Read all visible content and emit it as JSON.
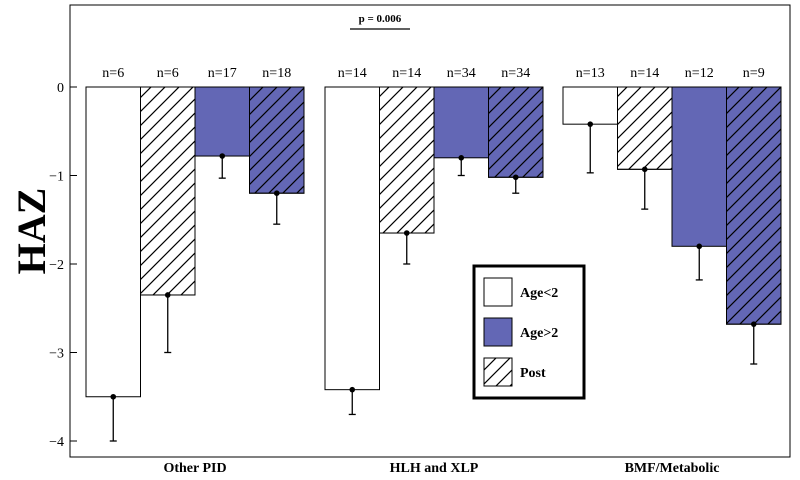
{
  "chart_data": {
    "type": "bar",
    "ylabel": "HAZ",
    "xlabel": "",
    "title": "",
    "ylim": [
      -4.15,
      0.8
    ],
    "yticks": [
      0,
      -1,
      -2,
      -3,
      -4
    ],
    "ytick_labels": [
      "0",
      "−1",
      "−2",
      "−3",
      "−4"
    ],
    "categories": [
      "Other PID",
      "HLH and XLP",
      "BMF/Metabolic"
    ],
    "bars_per_group": 4,
    "bars": [
      {
        "group": 0,
        "kind": "age_lt2",
        "value": -3.5,
        "err": 0.5,
        "n": "n=6"
      },
      {
        "group": 0,
        "kind": "age_lt2_post",
        "value": -2.35,
        "err": 0.65,
        "n": "n=6"
      },
      {
        "group": 0,
        "kind": "age_gt2",
        "value": -0.78,
        "err": 0.25,
        "n": "n=17"
      },
      {
        "group": 0,
        "kind": "age_gt2_post",
        "value": -1.2,
        "err": 0.35,
        "n": "n=18"
      },
      {
        "group": 1,
        "kind": "age_lt2",
        "value": -3.42,
        "err": 0.28,
        "n": "n=14"
      },
      {
        "group": 1,
        "kind": "age_lt2_post",
        "value": -1.65,
        "err": 0.35,
        "n": "n=14"
      },
      {
        "group": 1,
        "kind": "age_gt2",
        "value": -0.8,
        "err": 0.2,
        "n": "n=34"
      },
      {
        "group": 1,
        "kind": "age_gt2_post",
        "value": -1.02,
        "err": 0.18,
        "n": "n=34"
      },
      {
        "group": 2,
        "kind": "age_lt2",
        "value": -0.42,
        "err": 0.55,
        "n": "n=13"
      },
      {
        "group": 2,
        "kind": "age_lt2_post",
        "value": -0.93,
        "err": 0.45,
        "n": "n=14"
      },
      {
        "group": 2,
        "kind": "age_gt2",
        "value": -1.8,
        "err": 0.38,
        "n": "n=12"
      },
      {
        "group": 2,
        "kind": "age_gt2_post",
        "value": -2.68,
        "err": 0.45,
        "n": "n=9"
      }
    ],
    "legend": {
      "placement": "lower-right",
      "entries": [
        {
          "label": "Age<2",
          "style": "white"
        },
        {
          "label": "Age>2",
          "style": "blue"
        },
        {
          "label": "Post",
          "style": "hatch"
        }
      ]
    },
    "annotation": {
      "text": "p = 0.006",
      "group": 1
    },
    "colors": {
      "blue": "#6367b5",
      "outline": "#000000",
      "fill_white": "#ffffff"
    },
    "grid": false
  }
}
